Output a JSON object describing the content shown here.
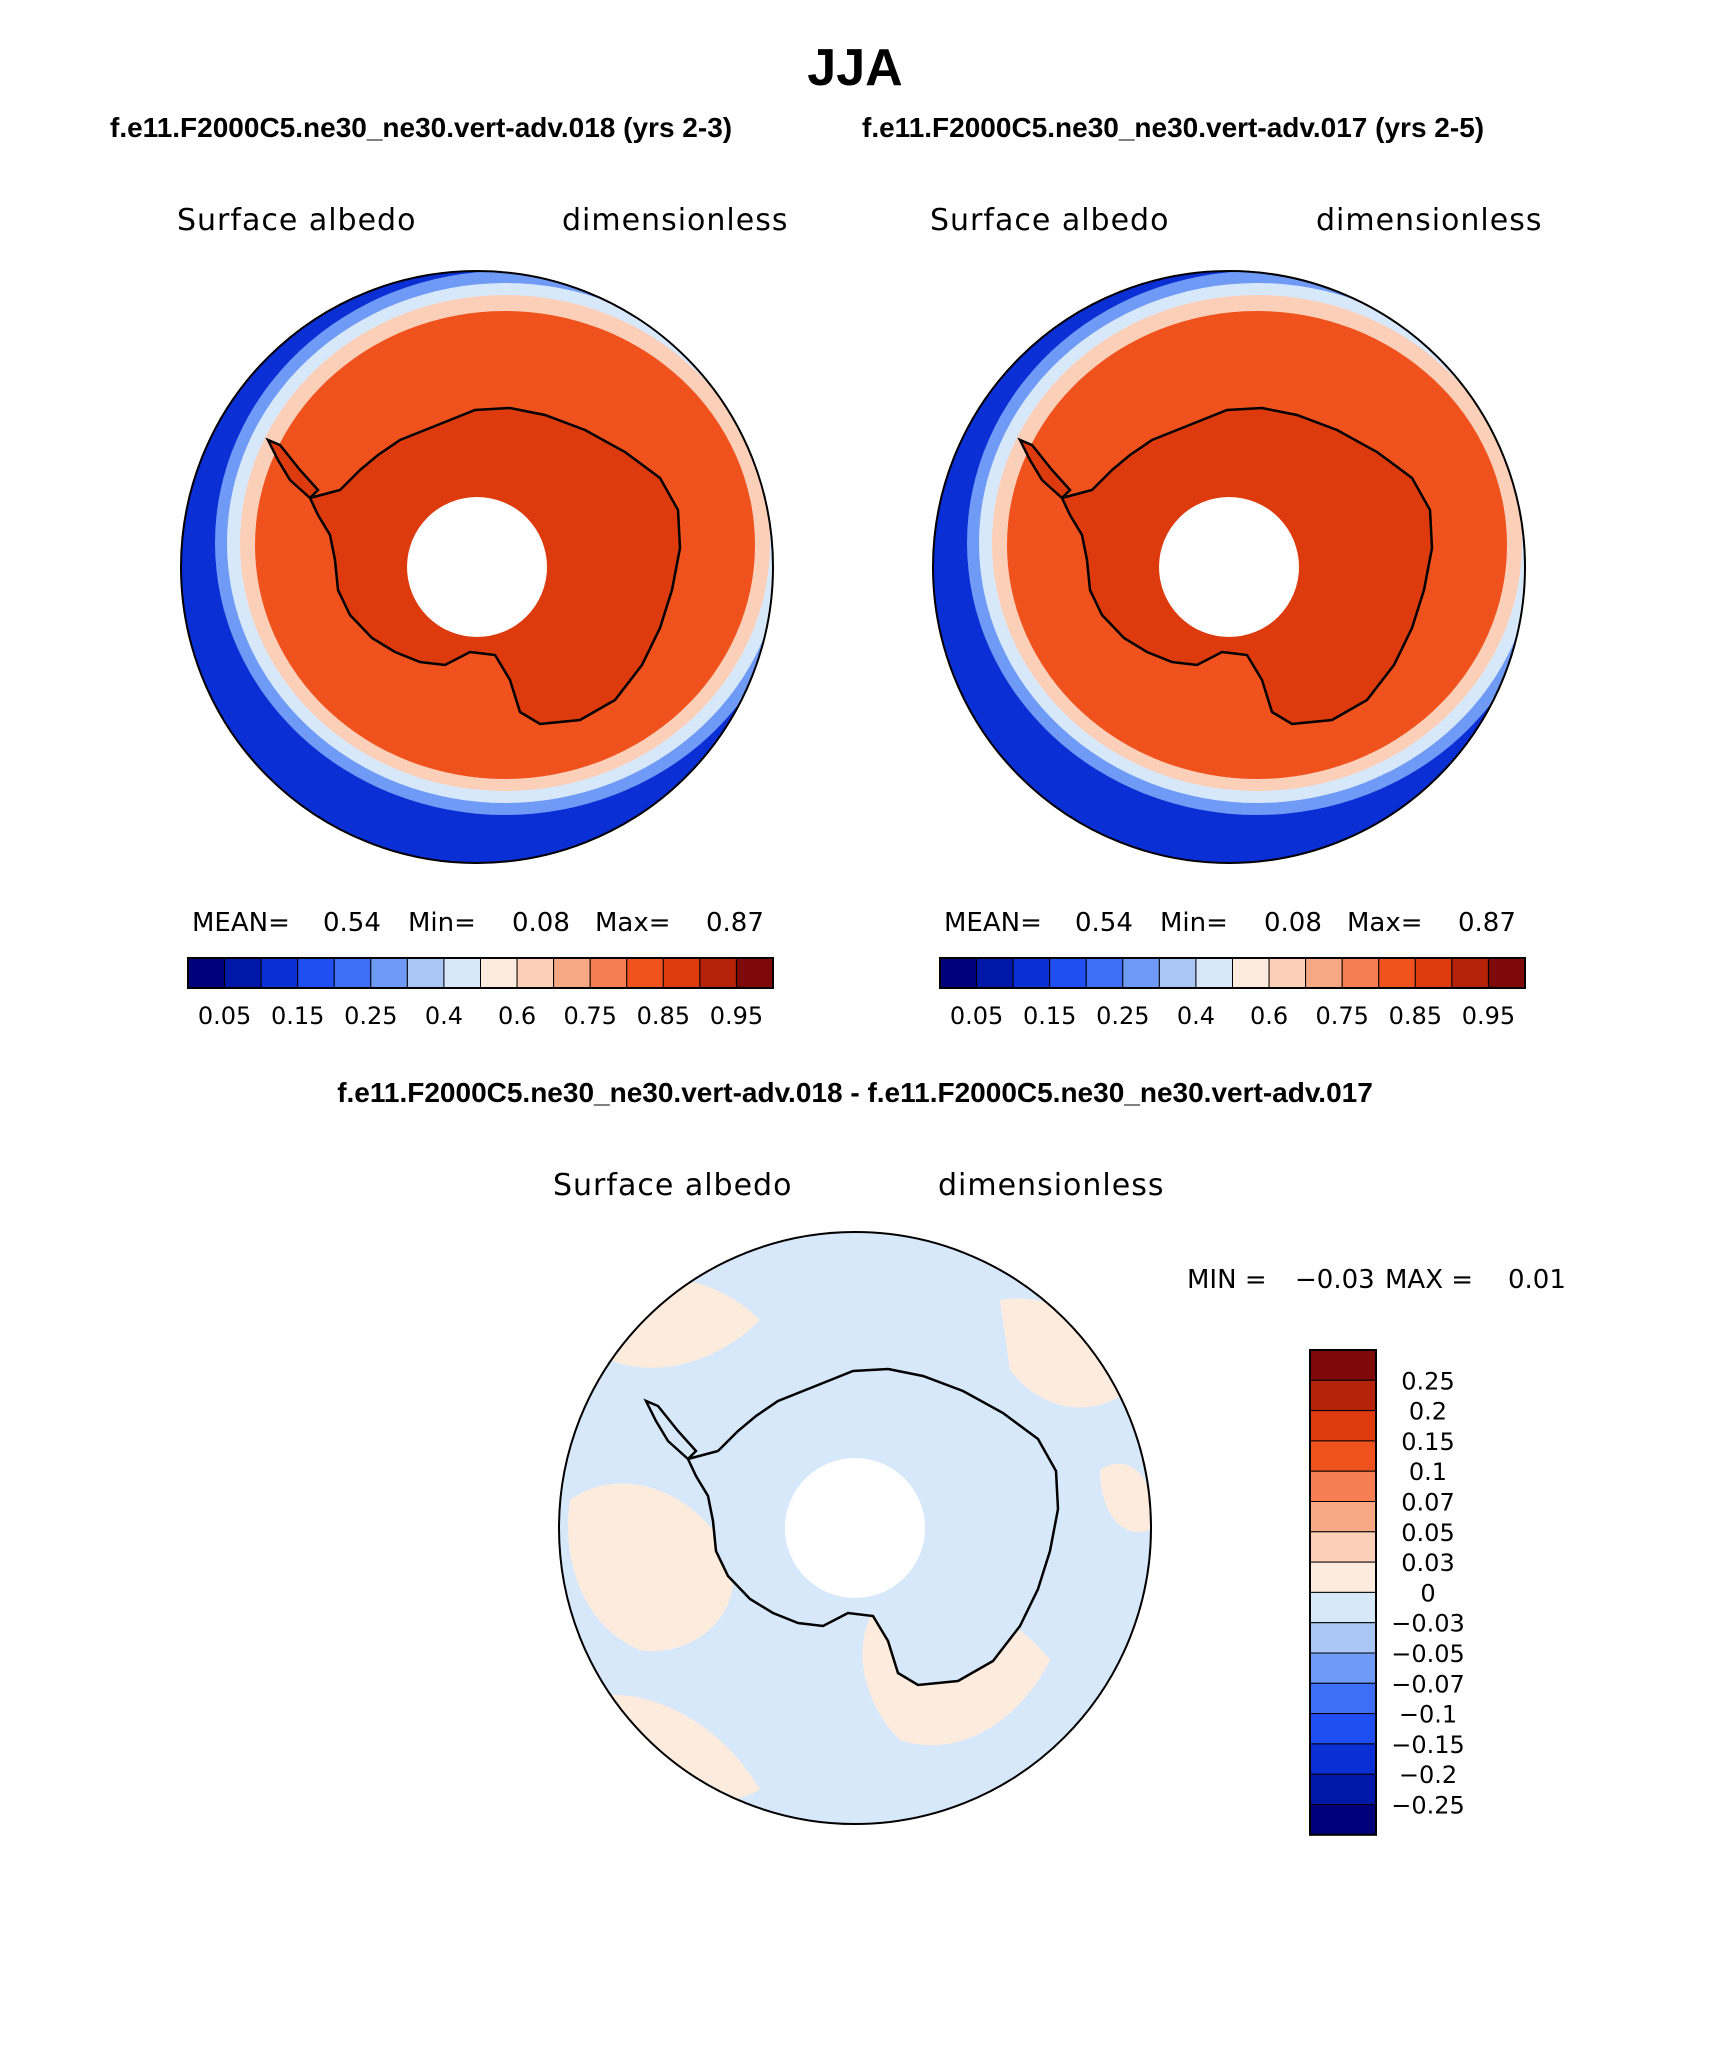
{
  "title": "JJA",
  "top_left_header": "f.e11.F2000C5.ne30_ne30.vert-adv.018 (yrs 2-3)",
  "top_right_header": "f.e11.F2000C5.ne30_ne30.vert-adv.017 (yrs 2-5)",
  "diff_header": "f.e11.F2000C5.ne30_ne30.vert-adv.018 - f.e11.F2000C5.ne30_ne30.vert-adv.017",
  "panels": {
    "left": {
      "variable": "Surface albedo",
      "units": "dimensionless",
      "mean_label": "MEAN=",
      "mean": "0.54",
      "min_label": "Min=",
      "min": "0.08",
      "max_label": "Max=",
      "max": "0.87"
    },
    "right": {
      "variable": "Surface albedo",
      "units": "dimensionless",
      "mean_label": "MEAN=",
      "mean": "0.54",
      "min_label": "Min=",
      "min": "0.08",
      "max_label": "Max=",
      "max": "0.87"
    },
    "diff": {
      "variable": "Surface albedo",
      "units": "dimensionless",
      "min_label": "MIN =",
      "min": "−0.03",
      "max_label": "MAX =",
      "max": "0.01"
    }
  },
  "abs_colorbar": {
    "colors": [
      "#00007a",
      "#0018a8",
      "#0a2fd4",
      "#1f4ff2",
      "#3d6ef5",
      "#6f9af5",
      "#a9c6f5",
      "#d8e8fb",
      "#fdecdd",
      "#fcd0b8",
      "#f9a885",
      "#f67e52",
      "#f0521e",
      "#dd3a0e",
      "#b5220a",
      "#7d0a08"
    ],
    "tick_labels": [
      "0.05",
      "0.15",
      "0.25",
      "0.4",
      "0.6",
      "0.75",
      "0.85",
      "0.95"
    ]
  },
  "diff_colorbar": {
    "colors_top_to_bottom": [
      "#7d0a08",
      "#b5220a",
      "#dd3a0e",
      "#f0521e",
      "#f67e52",
      "#f9a885",
      "#fcd0b8",
      "#fdecdd",
      "#d8e8fb",
      "#a9c6f5",
      "#6f9af5",
      "#3d6ef5",
      "#1f4ff2",
      "#0a2fd4",
      "#0018a8",
      "#00007a"
    ],
    "tick_labels": [
      "0.25",
      "0.2",
      "0.15",
      "0.1",
      "0.07",
      "0.05",
      "0.03",
      "0",
      "−0.03",
      "−0.05",
      "−0.07",
      "−0.1",
      "−0.15",
      "−0.2",
      "−0.25"
    ]
  },
  "map_colors": {
    "ocean": "#0a2fd4",
    "ice_edge_1": "#6f9af5",
    "ice_edge_2": "#d8e8fb",
    "ice_edge_3": "#fcd0b8",
    "ice": "#f0521e",
    "plateau": "#dd3a0e",
    "coast": "#000000",
    "diff_pos": "#fdecdd",
    "diff_neg": "#d8e8fb"
  }
}
